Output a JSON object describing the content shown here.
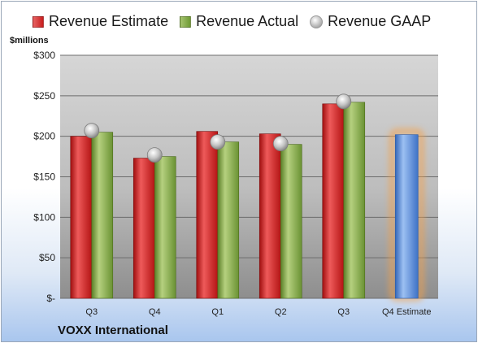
{
  "chart_data": {
    "type": "bar",
    "title": "VOXX International",
    "ylabel": "$millions",
    "ylim": [
      0,
      300
    ],
    "yticks": [
      {
        "value": 0,
        "label": "$-"
      },
      {
        "value": 50,
        "label": "$50"
      },
      {
        "value": 100,
        "label": "$100"
      },
      {
        "value": 150,
        "label": "$150"
      },
      {
        "value": 200,
        "label": "$200"
      },
      {
        "value": 250,
        "label": "$250"
      },
      {
        "value": 300,
        "label": "$300"
      }
    ],
    "categories": [
      "Q3",
      "Q4",
      "Q1",
      "Q2",
      "Q3",
      "Q4 Estimate"
    ],
    "series": [
      {
        "name": "Revenue Estimate",
        "kind": "bar",
        "color": "#c81d1d",
        "values": [
          200,
          173,
          206,
          203,
          240,
          null
        ]
      },
      {
        "name": "Revenue Actual",
        "kind": "bar",
        "color": "#7aa33a",
        "values": [
          205,
          175,
          193,
          190,
          242,
          null
        ]
      },
      {
        "name": "Revenue GAAP",
        "kind": "marker",
        "color": "#b0b0b0",
        "values": [
          207,
          177,
          193,
          191,
          243,
          null
        ]
      }
    ],
    "forecast": {
      "category": "Q4 Estimate",
      "value": 202,
      "color": "#4f86d6",
      "glow_color": "#f5a14a"
    },
    "grid": true,
    "legend_position": "top"
  }
}
